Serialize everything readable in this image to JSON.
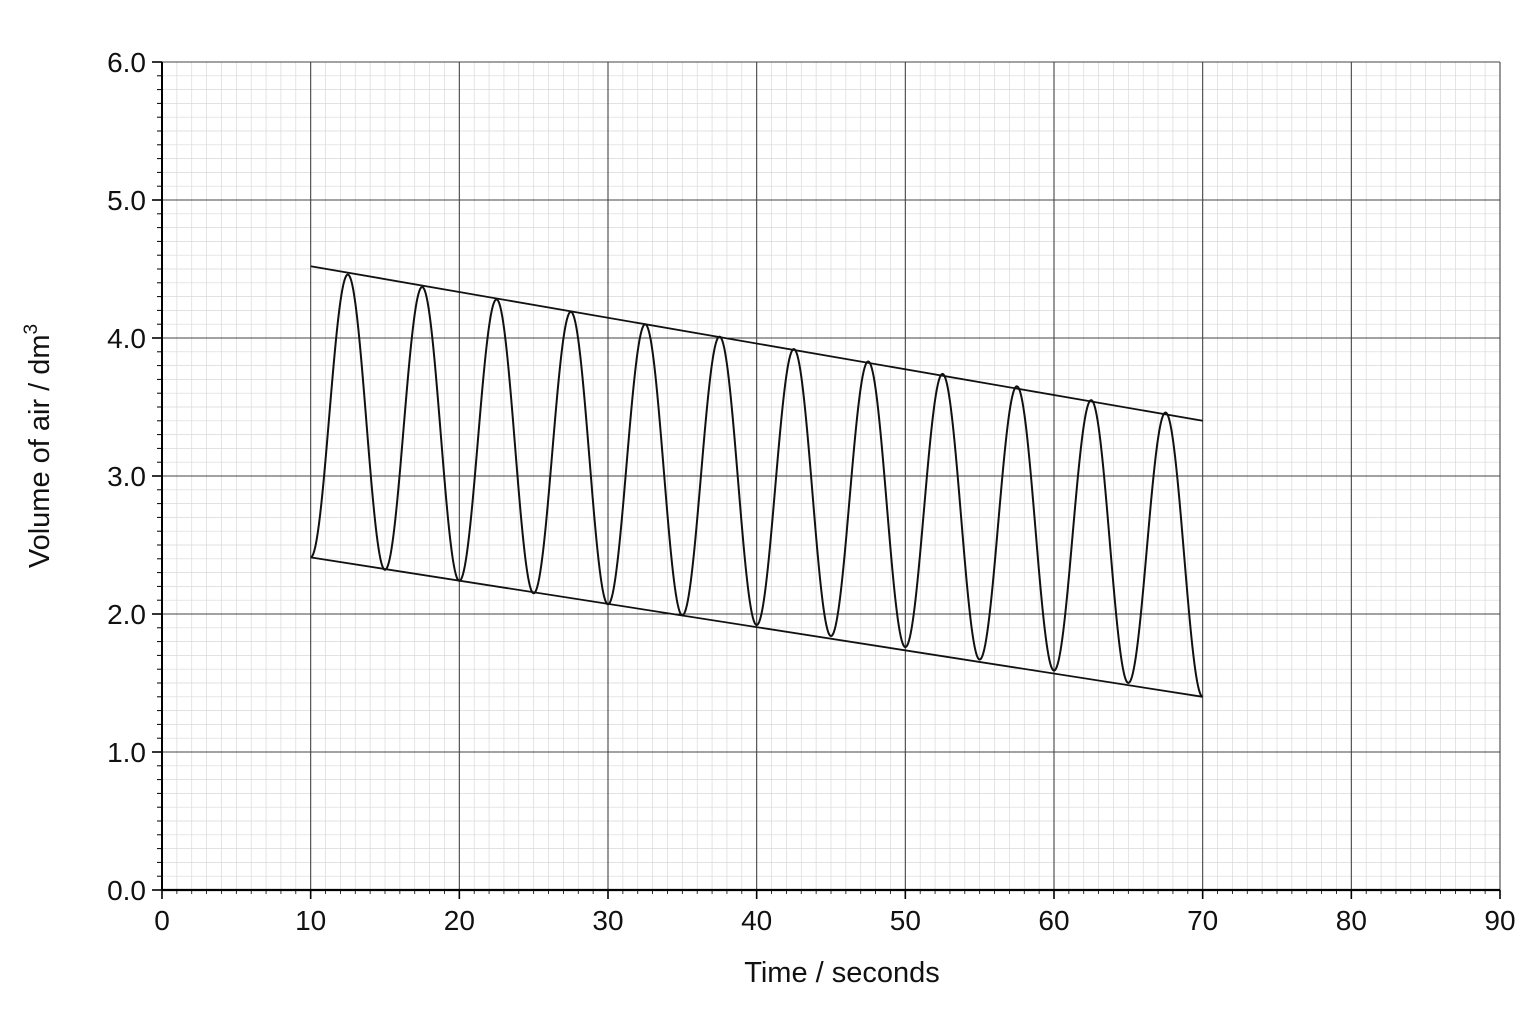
{
  "chart_data": {
    "type": "line",
    "xlabel": "Time / seconds",
    "ylabel_main": "Volume of air / dm",
    "ylabel_sup": "3",
    "xlim": [
      0,
      90
    ],
    "ylim": [
      0,
      6
    ],
    "x_ticks": [
      "0",
      "10",
      "20",
      "30",
      "40",
      "50",
      "60",
      "70",
      "80",
      "90"
    ],
    "y_ticks": [
      "0.0",
      "1.0",
      "2.0",
      "3.0",
      "4.0",
      "5.0",
      "6.0"
    ],
    "x_tick_values": [
      0,
      10,
      20,
      30,
      40,
      50,
      60,
      70,
      80,
      90
    ],
    "y_tick_values": [
      0,
      1,
      2,
      3,
      4,
      5,
      6
    ],
    "grid": true,
    "series": [
      {
        "id": "trace",
        "points": [
          [
            10.0,
            2.41
          ],
          [
            12.5,
            4.46
          ],
          [
            15.0,
            2.32
          ],
          [
            17.5,
            4.37
          ],
          [
            20.0,
            2.24
          ],
          [
            22.5,
            4.28
          ],
          [
            25.0,
            2.15
          ],
          [
            27.5,
            4.19
          ],
          [
            30.0,
            2.07
          ],
          [
            32.5,
            4.1
          ],
          [
            35.0,
            1.99
          ],
          [
            37.5,
            4.01
          ],
          [
            40.0,
            1.92
          ],
          [
            42.5,
            3.92
          ],
          [
            45.0,
            1.84
          ],
          [
            47.5,
            3.83
          ],
          [
            50.0,
            1.76
          ],
          [
            52.5,
            3.74
          ],
          [
            55.0,
            1.67
          ],
          [
            57.5,
            3.65
          ],
          [
            60.0,
            1.59
          ],
          [
            62.5,
            3.55
          ],
          [
            65.0,
            1.5
          ],
          [
            67.5,
            3.46
          ],
          [
            70.0,
            1.4
          ]
        ]
      },
      {
        "id": "upper-line",
        "points": [
          [
            10,
            4.52
          ],
          [
            70,
            3.4
          ]
        ]
      },
      {
        "id": "lower-line",
        "points": [
          [
            10,
            2.41
          ],
          [
            70,
            1.4
          ]
        ]
      }
    ],
    "colors": {
      "line": "#111111",
      "major_grid": "#444444",
      "minor_grid": "#d9d9d9",
      "axis": "#000000"
    }
  }
}
